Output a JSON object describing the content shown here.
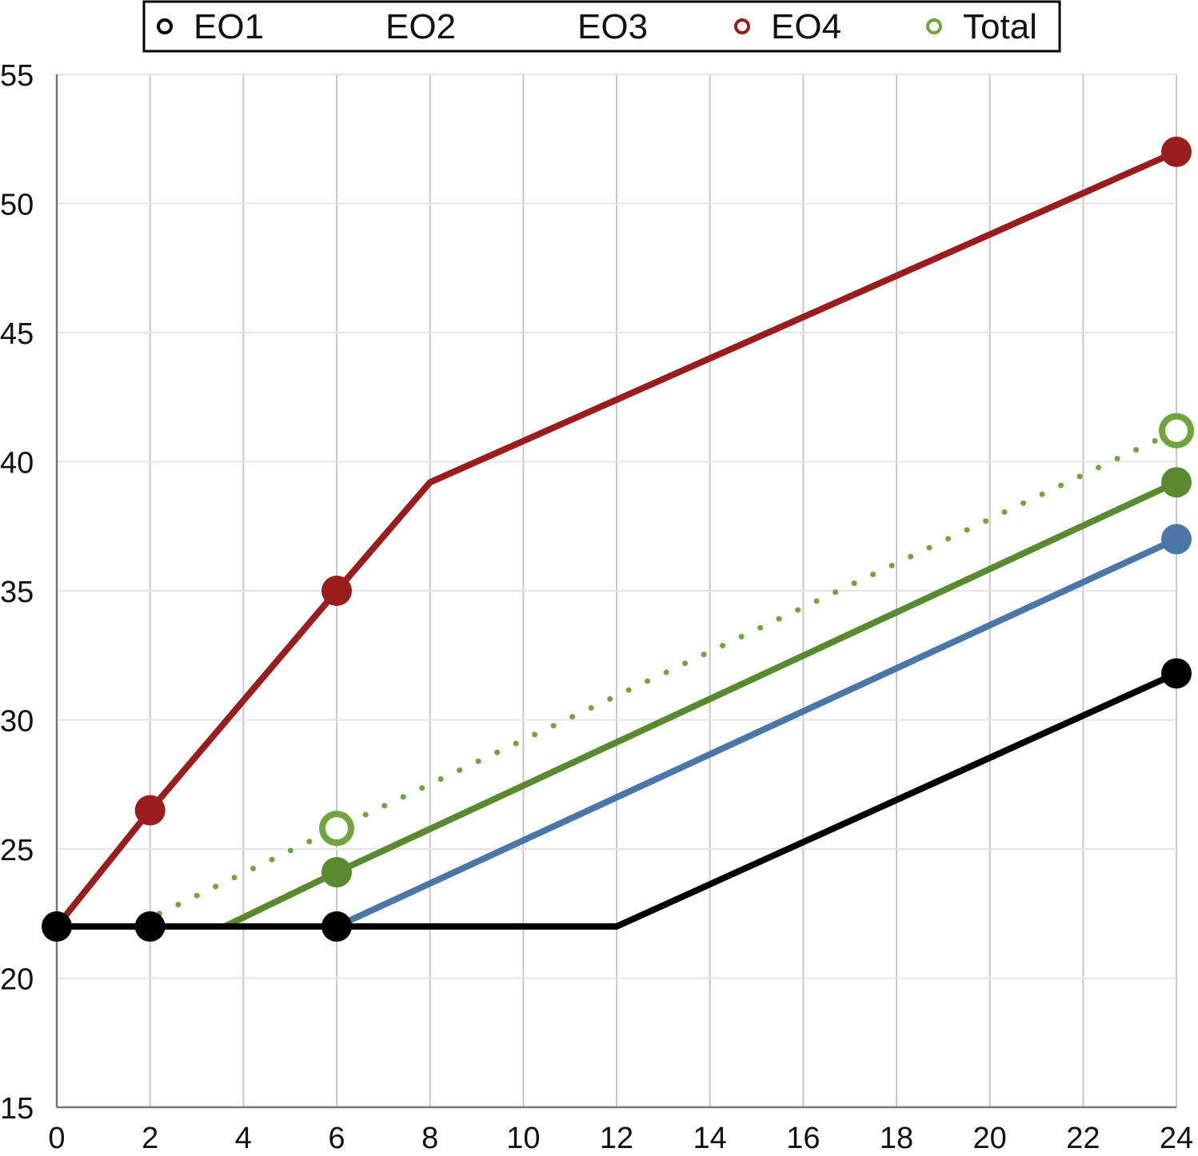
{
  "chart_data": {
    "type": "line",
    "title": "",
    "xlabel": "",
    "ylabel": "",
    "xlim": [
      0,
      24
    ],
    "ylim": [
      15,
      55
    ],
    "x_ticks": [
      0,
      2,
      4,
      6,
      8,
      10,
      12,
      14,
      16,
      18,
      20,
      22,
      24
    ],
    "y_ticks": [
      15,
      20,
      25,
      30,
      35,
      40,
      45,
      50,
      55
    ],
    "grid": true,
    "legend_position": "top",
    "legend": [
      {
        "label": "EO1",
        "color": "#000000",
        "marker": "open-circle"
      },
      {
        "label": "EO2",
        "color": "",
        "marker": "none"
      },
      {
        "label": "EO3",
        "color": "",
        "marker": "none"
      },
      {
        "label": "EO4",
        "color": "#9b1c1c",
        "marker": "open-circle"
      },
      {
        "label": "Total",
        "color": "#6fa53a",
        "marker": "open-circle"
      }
    ],
    "series": [
      {
        "color": "#9b1c1c",
        "style": "solid",
        "width": 8,
        "points": [
          [
            0,
            22
          ],
          [
            2,
            26.5
          ],
          [
            6,
            35
          ],
          [
            8,
            39.2
          ],
          [
            24,
            52
          ]
        ],
        "marker_indices": [
          1,
          2,
          4
        ],
        "marker": "filled"
      },
      {
        "color": "#6fa53a",
        "style": "dotted",
        "width": 7,
        "points": [
          [
            2.2,
            22.5
          ],
          [
            6,
            25.8
          ],
          [
            24,
            41.2
          ]
        ],
        "marker_indices": [
          1,
          2
        ],
        "marker": "open"
      },
      {
        "color": "#5a8a2e",
        "style": "solid",
        "width": 8,
        "points": [
          [
            3.6,
            22
          ],
          [
            6,
            24.1
          ],
          [
            24,
            39.2
          ]
        ],
        "marker_indices": [
          1,
          2
        ],
        "marker": "filled"
      },
      {
        "color": "#4a77a8",
        "style": "solid",
        "width": 8,
        "points": [
          [
            6,
            22
          ],
          [
            24,
            37
          ]
        ],
        "marker_indices": [
          1
        ],
        "marker": "filled"
      },
      {
        "color": "#000000",
        "style": "solid",
        "width": 8,
        "points": [
          [
            0,
            22
          ],
          [
            2,
            22
          ],
          [
            6,
            22
          ],
          [
            12,
            22
          ],
          [
            24,
            31.8
          ]
        ],
        "marker_indices": [
          0,
          1,
          2,
          4
        ],
        "marker": "filled"
      }
    ]
  }
}
